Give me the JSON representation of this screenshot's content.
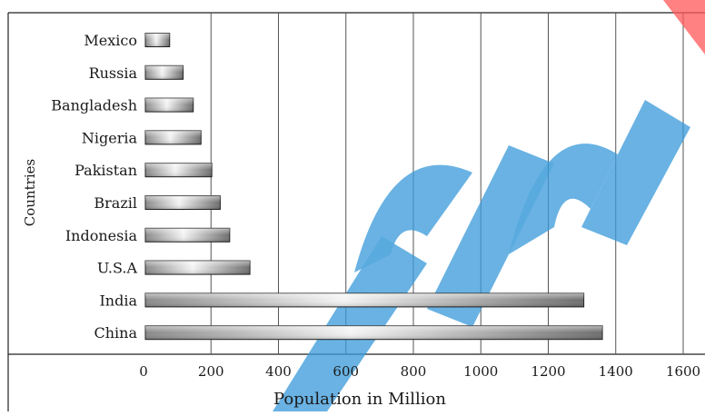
{
  "chart_data": {
    "type": "bar",
    "orientation": "horizontal",
    "categories": [
      "Mexico",
      "Russia",
      "Bangladesh",
      "Nigeria",
      "Pakistan",
      "Brazil",
      "Indonesia",
      "U.S.A",
      "India",
      "China"
    ],
    "values": [
      72,
      112,
      142,
      165,
      197,
      222,
      250,
      310,
      1300,
      1355
    ],
    "xlabel": "Population in Million",
    "ylabel": "Countries",
    "xlim": [
      0,
      1600
    ],
    "xticks": [
      "0",
      "200",
      "400",
      "600",
      "800",
      "1000",
      "1200",
      "1400",
      "1600"
    ],
    "grid": "vertical",
    "colors": {
      "bar_fill_light": "#f2f2f2",
      "bar_fill_dark": "#7a7a7a",
      "bar_stroke": "#222222",
      "grid": "#555555",
      "watermark": "#3a9ad9",
      "watermark_accent": "#ff5a5a"
    }
  }
}
